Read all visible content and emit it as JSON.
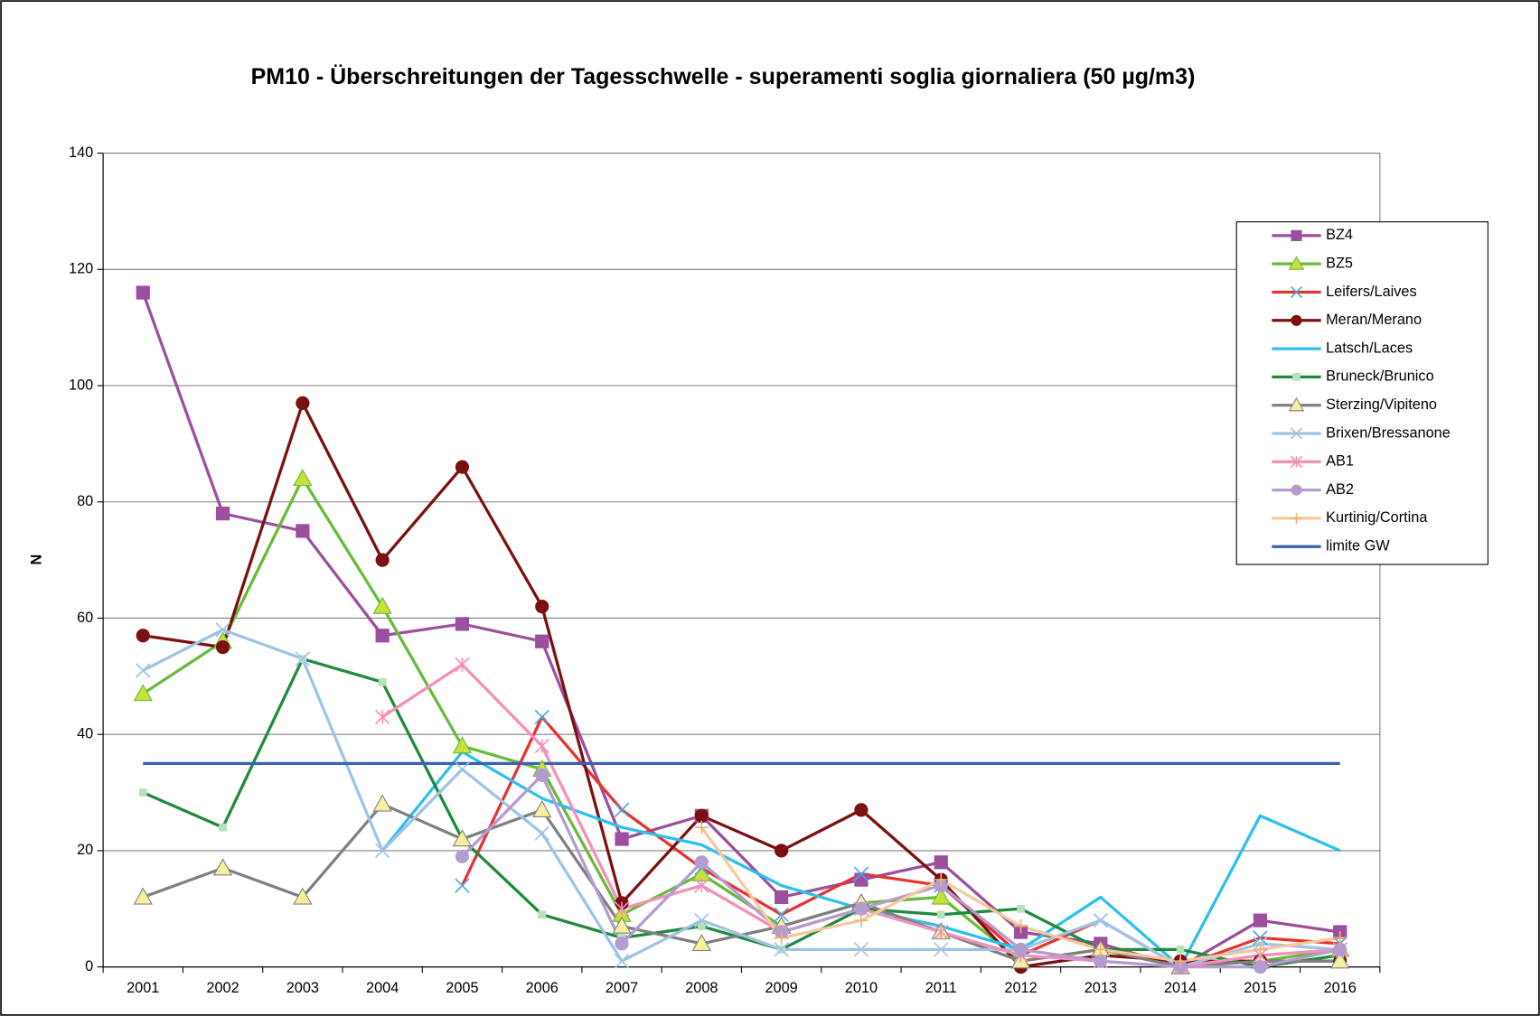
{
  "chart_data": {
    "type": "line",
    "title": "PM10 - Überschreitungen der Tagesschwelle - superamenti soglia giornaliera (50 µg/m3)",
    "y_label": "N",
    "categories": [
      "2001",
      "2002",
      "2003",
      "2004",
      "2005",
      "2006",
      "2007",
      "2008",
      "2009",
      "2010",
      "2011",
      "2012",
      "2013",
      "2014",
      "2015",
      "2016"
    ],
    "ylim": [
      0,
      140
    ],
    "yticks": [
      0,
      20,
      40,
      60,
      80,
      100,
      120,
      140
    ],
    "grid": true,
    "legend": "right",
    "series": [
      {
        "name": "BZ4",
        "color": "#9b4f9e",
        "marker": "square",
        "marker_color": "#9b4f9e",
        "values": [
          116,
          78,
          75,
          57,
          59,
          56,
          22,
          26,
          12,
          15,
          18,
          6,
          4,
          0,
          8,
          6
        ]
      },
      {
        "name": "BZ5",
        "color": "#66bb3a",
        "marker": "triangle",
        "marker_color": "#c8e03a",
        "values": [
          47,
          56,
          84,
          62,
          38,
          34,
          9,
          16,
          7,
          11,
          12,
          1,
          3,
          0,
          1,
          3
        ]
      },
      {
        "name": "Leifers/Laives",
        "color": "#e8322e",
        "marker": "x",
        "marker_color": "#4aa8d8",
        "values": [
          null,
          null,
          null,
          null,
          14,
          43,
          27,
          17,
          9,
          16,
          14,
          2,
          8,
          0,
          5,
          4
        ]
      },
      {
        "name": "Meran/Merano",
        "color": "#7a1010",
        "marker": "circle",
        "marker_color": "#7a1010",
        "values": [
          57,
          55,
          97,
          70,
          86,
          62,
          11,
          26,
          20,
          27,
          15,
          0,
          2,
          1,
          1,
          1
        ]
      },
      {
        "name": "Latsch/Laces",
        "color": "#2cc0ee",
        "marker": "none",
        "marker_color": "#2cc0ee",
        "values": [
          null,
          null,
          null,
          20,
          37,
          29,
          24,
          21,
          14,
          10,
          7,
          3,
          12,
          0,
          26,
          20
        ]
      },
      {
        "name": "Bruneck/Brunico",
        "color": "#1e8a3c",
        "marker": "smallsquare",
        "marker_color": "#b8e0b8",
        "values": [
          30,
          24,
          53,
          49,
          22,
          9,
          5,
          7,
          3,
          10,
          9,
          10,
          3,
          3,
          0,
          2
        ]
      },
      {
        "name": "Sterzing/Vipiteno",
        "color": "#808080",
        "marker": "triangle",
        "marker_color": "#f4f0a0",
        "values": [
          12,
          17,
          12,
          28,
          22,
          27,
          7,
          4,
          7,
          11,
          6,
          1,
          3,
          0,
          1,
          1
        ]
      },
      {
        "name": "Brixen/Bressanone",
        "color": "#9dc3e6",
        "marker": "x",
        "marker_color": "#9dc3e6",
        "values": [
          51,
          58,
          53,
          20,
          34,
          23,
          1,
          8,
          3,
          3,
          3,
          3,
          8,
          0,
          4,
          3
        ]
      },
      {
        "name": "AB1",
        "color": "#f48fb8",
        "marker": "star",
        "marker_color": "#f48fb8",
        "values": [
          null,
          null,
          null,
          43,
          52,
          38,
          10,
          14,
          6,
          10,
          6,
          2,
          1,
          0,
          2,
          3
        ]
      },
      {
        "name": "AB2",
        "color": "#b49bd0",
        "marker": "circle",
        "marker_color": "#b49bd0",
        "values": [
          null,
          null,
          null,
          null,
          19,
          33,
          4,
          18,
          6,
          10,
          14,
          3,
          1,
          0,
          0,
          3
        ]
      },
      {
        "name": "Kurtinig/Cortina",
        "color": "#f7c89a",
        "marker": "plus",
        "marker_color": "#f0b070",
        "values": [
          null,
          null,
          null,
          null,
          null,
          null,
          null,
          24,
          5,
          8,
          15,
          7,
          3,
          1,
          3,
          5
        ]
      },
      {
        "name": "limite GW",
        "color": "#3a62b0",
        "marker": "none",
        "marker_color": "#3a62b0",
        "values": [
          35,
          35,
          35,
          35,
          35,
          35,
          35,
          35,
          35,
          35,
          35,
          35,
          35,
          35,
          35,
          35
        ]
      }
    ]
  }
}
